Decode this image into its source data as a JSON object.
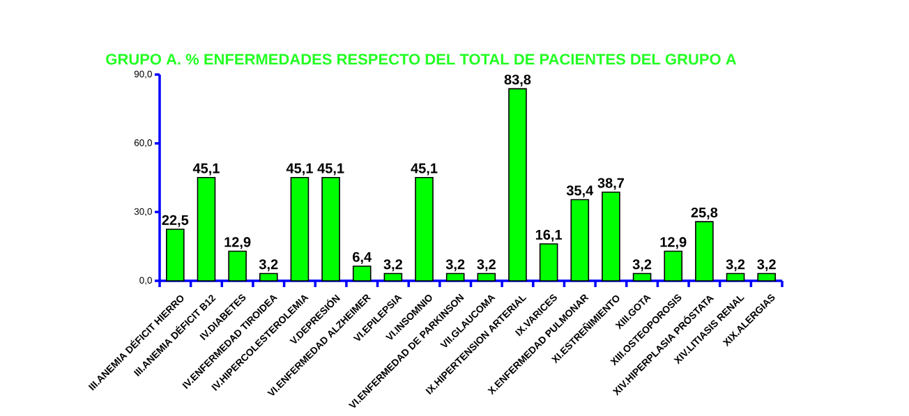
{
  "chart_data": {
    "type": "bar",
    "title": "GRUPO A. % ENFERMEDADES RESPECTO DEL TOTAL DE PACIENTES DEL  GRUPO A",
    "categories": [
      "III.ANEMIA DÉFICIT HIERRO",
      "III.ANEMIA DÉFICIT B12",
      "IV.DIABETES",
      "IV.ENFERMEDAD TIROIDEA",
      "IV.HIPERCOLESTEROLEMIA",
      "V.DEPRESIÓN",
      "VI.ENFERMEDAD ALZHEIMER",
      "VI.EPILEPSIA",
      "VI.INSOMNIO",
      "VI.ENFERMEDAD DE PARKINSON",
      "VII.GLAUCOMA",
      "IX.HIPERTENSION ARTERIAL",
      "IX.VARICES",
      "X.ENFERMEDAD PULMONAR",
      "XI.ESTREÑIMIENTO",
      "XIII.GOTA",
      "XIII.OSTEOPOROSIS",
      "XIV.HIPERPLASIA  PRÓSTATA",
      "XIV.LITIASIS RENAL",
      "XIX.ALERGIAS"
    ],
    "values": [
      22.5,
      45.1,
      12.9,
      3.2,
      45.1,
      45.1,
      6.4,
      3.2,
      45.1,
      3.2,
      3.2,
      83.8,
      16.1,
      35.4,
      38.7,
      3.2,
      12.9,
      25.8,
      3.2,
      3.2
    ],
    "value_labels": [
      "22,5",
      "45,1",
      "12,9",
      "3,2",
      "45,1",
      "45,1",
      "6,4",
      "3,2",
      "45,1",
      "3,2",
      "3,2",
      "83,8",
      "16,1",
      "35,4",
      "38,7",
      "3,2",
      "12,9",
      "25,8",
      "3,2",
      "3,2"
    ],
    "color": "#00ff00",
    "ylim": [
      0,
      90
    ],
    "yticks": [
      {
        "value": 0,
        "label": "0,0"
      },
      {
        "value": 30,
        "label": "30,0"
      },
      {
        "value": 60,
        "label": "60,0"
      },
      {
        "value": 90,
        "label": "90,0"
      }
    ]
  }
}
